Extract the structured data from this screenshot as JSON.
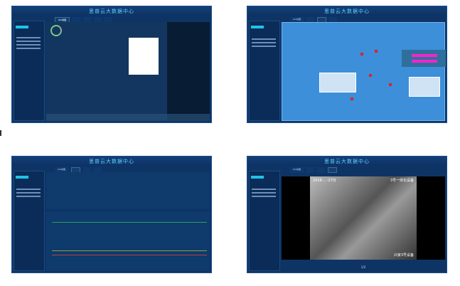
{
  "app": {
    "title": "思普云大数据中心",
    "active_tabs": [
      "GIS地图",
      "",
      "",
      "",
      "",
      "",
      ""
    ]
  },
  "screens": [
    {
      "name": "gis-map",
      "active_tab_index": 0
    },
    {
      "name": "process-diagram",
      "active_tab_index": 2
    },
    {
      "name": "realtime-monitor",
      "active_tab_index": 1
    },
    {
      "name": "video-monitor",
      "active_tab_index": 3,
      "video": {
        "timestamp": "2018-…-27日",
        "camera_label": "3号一体化设备",
        "device_caption": "兴家3号设备"
      },
      "pager": "1/2"
    }
  ],
  "colors": {
    "background": "#0e3466",
    "accent": "#1ec3e8",
    "alarm": "#e0202e",
    "highlight": "#ff22cc"
  }
}
